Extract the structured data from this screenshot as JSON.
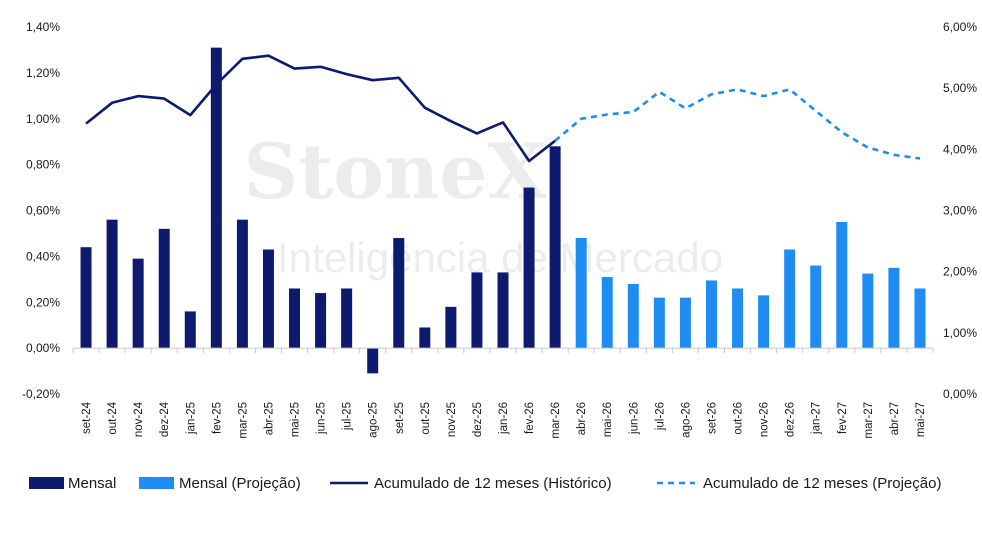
{
  "watermark": {
    "line1": "StoneX",
    "line2": "Inteligência de Mercado"
  },
  "colors": {
    "mensal": "#0d1a6e",
    "mensal_proj": "#1e8cf0",
    "acum_hist": "#0d1a6e",
    "acum_proj": "#1e8cf0",
    "axis": "#c8c8c8",
    "text": "#1a1a1a"
  },
  "chart_data": {
    "type": "bar",
    "categories": [
      "set-24",
      "out-24",
      "nov-24",
      "dez-24",
      "jan-25",
      "fev-25",
      "mar-25",
      "abr-25",
      "mai-25",
      "jun-25",
      "jul-25",
      "ago-25",
      "set-25",
      "out-25",
      "nov-25",
      "dez-25",
      "jan-26",
      "fev-26",
      "mar-26",
      "abr-26",
      "mai-26",
      "jun-26",
      "jul-26",
      "ago-26",
      "set-26",
      "out-26",
      "nov-26",
      "dez-26",
      "jan-27",
      "fev-27",
      "mar-27",
      "abr-27",
      "mai-27"
    ],
    "y_left": {
      "ticks": [
        "-0,20%",
        "0,00%",
        "0,20%",
        "0,40%",
        "0,60%",
        "0,80%",
        "1,00%",
        "1,20%",
        "1,40%"
      ],
      "ylim": [
        -0.2,
        1.4
      ]
    },
    "y_right": {
      "ticks": [
        "0,00%",
        "1,00%",
        "2,00%",
        "3,00%",
        "4,00%",
        "5,00%",
        "6,00%"
      ],
      "ylim": [
        0,
        6
      ]
    },
    "series": [
      {
        "name": "Mensal",
        "type": "bar",
        "axis": "left",
        "values": [
          0.44,
          0.56,
          0.39,
          0.52,
          0.16,
          1.31,
          0.56,
          0.43,
          0.26,
          0.24,
          0.26,
          -0.11,
          0.48,
          0.09,
          0.18,
          0.33,
          0.33,
          0.7,
          0.88,
          null,
          null,
          null,
          null,
          null,
          null,
          null,
          null,
          null,
          null,
          null,
          null,
          null,
          null
        ]
      },
      {
        "name": "Mensal (Projeção)",
        "type": "bar",
        "axis": "left",
        "values": [
          null,
          null,
          null,
          null,
          null,
          null,
          null,
          null,
          null,
          null,
          null,
          null,
          null,
          null,
          null,
          null,
          null,
          null,
          null,
          0.48,
          0.31,
          0.28,
          0.22,
          0.22,
          0.295,
          0.26,
          0.23,
          0.43,
          0.36,
          0.55,
          0.325,
          0.35,
          0.26
        ]
      },
      {
        "name": "Acumulado de 12 meses (Histórico)",
        "type": "line",
        "axis": "right",
        "values": [
          4.42,
          4.76,
          4.87,
          4.83,
          4.56,
          5.06,
          5.48,
          5.53,
          5.32,
          5.35,
          5.23,
          5.13,
          5.17,
          4.68,
          4.46,
          4.26,
          4.44,
          3.81,
          4.14,
          null,
          null,
          null,
          null,
          null,
          null,
          null,
          null,
          null,
          null,
          null,
          null,
          null,
          null
        ]
      },
      {
        "name": "Acumulado de 12 meses (Projeção)",
        "type": "line",
        "style": "dashed",
        "axis": "right",
        "values": [
          null,
          null,
          null,
          null,
          null,
          null,
          null,
          null,
          null,
          null,
          null,
          null,
          null,
          null,
          null,
          null,
          null,
          null,
          4.14,
          4.5,
          4.57,
          4.61,
          4.94,
          4.67,
          4.9,
          4.98,
          4.87,
          4.98,
          4.63,
          4.28,
          4.03,
          3.91,
          3.85
        ]
      }
    ],
    "legend_position": "bottom",
    "grid": false
  }
}
